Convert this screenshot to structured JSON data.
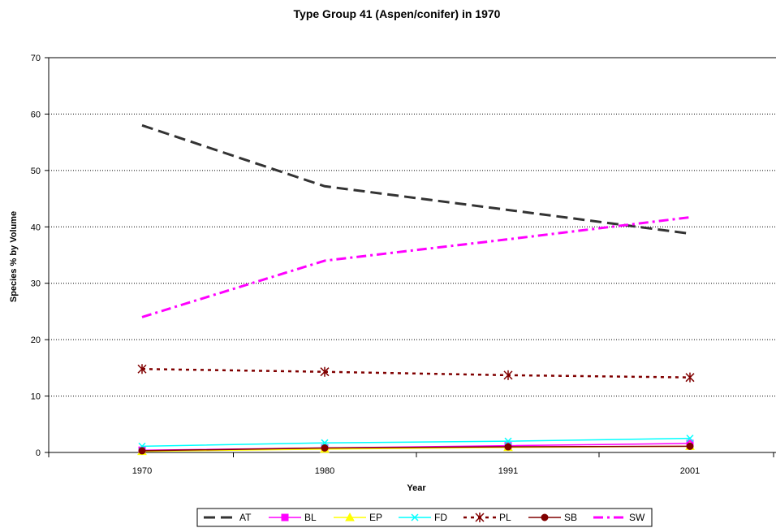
{
  "chart_data": {
    "type": "line",
    "title": "Type Group 41 (Aspen/conifer) in 1970",
    "xlabel": "Year",
    "ylabel": "Species % by Volume",
    "categories": [
      "1970",
      "1980",
      "1991",
      "2001"
    ],
    "ylim": [
      0,
      70
    ],
    "yticks": [
      0,
      10,
      20,
      30,
      40,
      50,
      60,
      70
    ],
    "grid": "horizontal dotted",
    "legend_position": "bottom",
    "series": [
      {
        "name": "AT",
        "values": [
          58,
          47.2,
          43,
          38.8
        ],
        "color": "#333333",
        "style": "long-dash",
        "marker": "none"
      },
      {
        "name": "BL",
        "values": [
          0.4,
          0.8,
          1.2,
          1.6
        ],
        "color": "#ff00ff",
        "style": "solid",
        "marker": "square"
      },
      {
        "name": "EP",
        "values": [
          0.2,
          0.6,
          0.9,
          1.1
        ],
        "color": "#ffff00",
        "style": "solid",
        "marker": "triangle"
      },
      {
        "name": "FD",
        "values": [
          1.1,
          1.7,
          2.0,
          2.5
        ],
        "color": "#00ffff",
        "style": "solid",
        "marker": "x"
      },
      {
        "name": "PL",
        "values": [
          14.8,
          14.3,
          13.7,
          13.3
        ],
        "color": "#800000",
        "style": "dotted",
        "marker": "asterisk"
      },
      {
        "name": "SB",
        "values": [
          0.3,
          0.8,
          1.0,
          1.1
        ],
        "color": "#800000",
        "style": "solid",
        "marker": "circle"
      },
      {
        "name": "SW",
        "values": [
          24,
          34,
          37.8,
          41.7
        ],
        "color": "#ff00ff",
        "style": "dash-dot",
        "marker": "none"
      }
    ]
  }
}
